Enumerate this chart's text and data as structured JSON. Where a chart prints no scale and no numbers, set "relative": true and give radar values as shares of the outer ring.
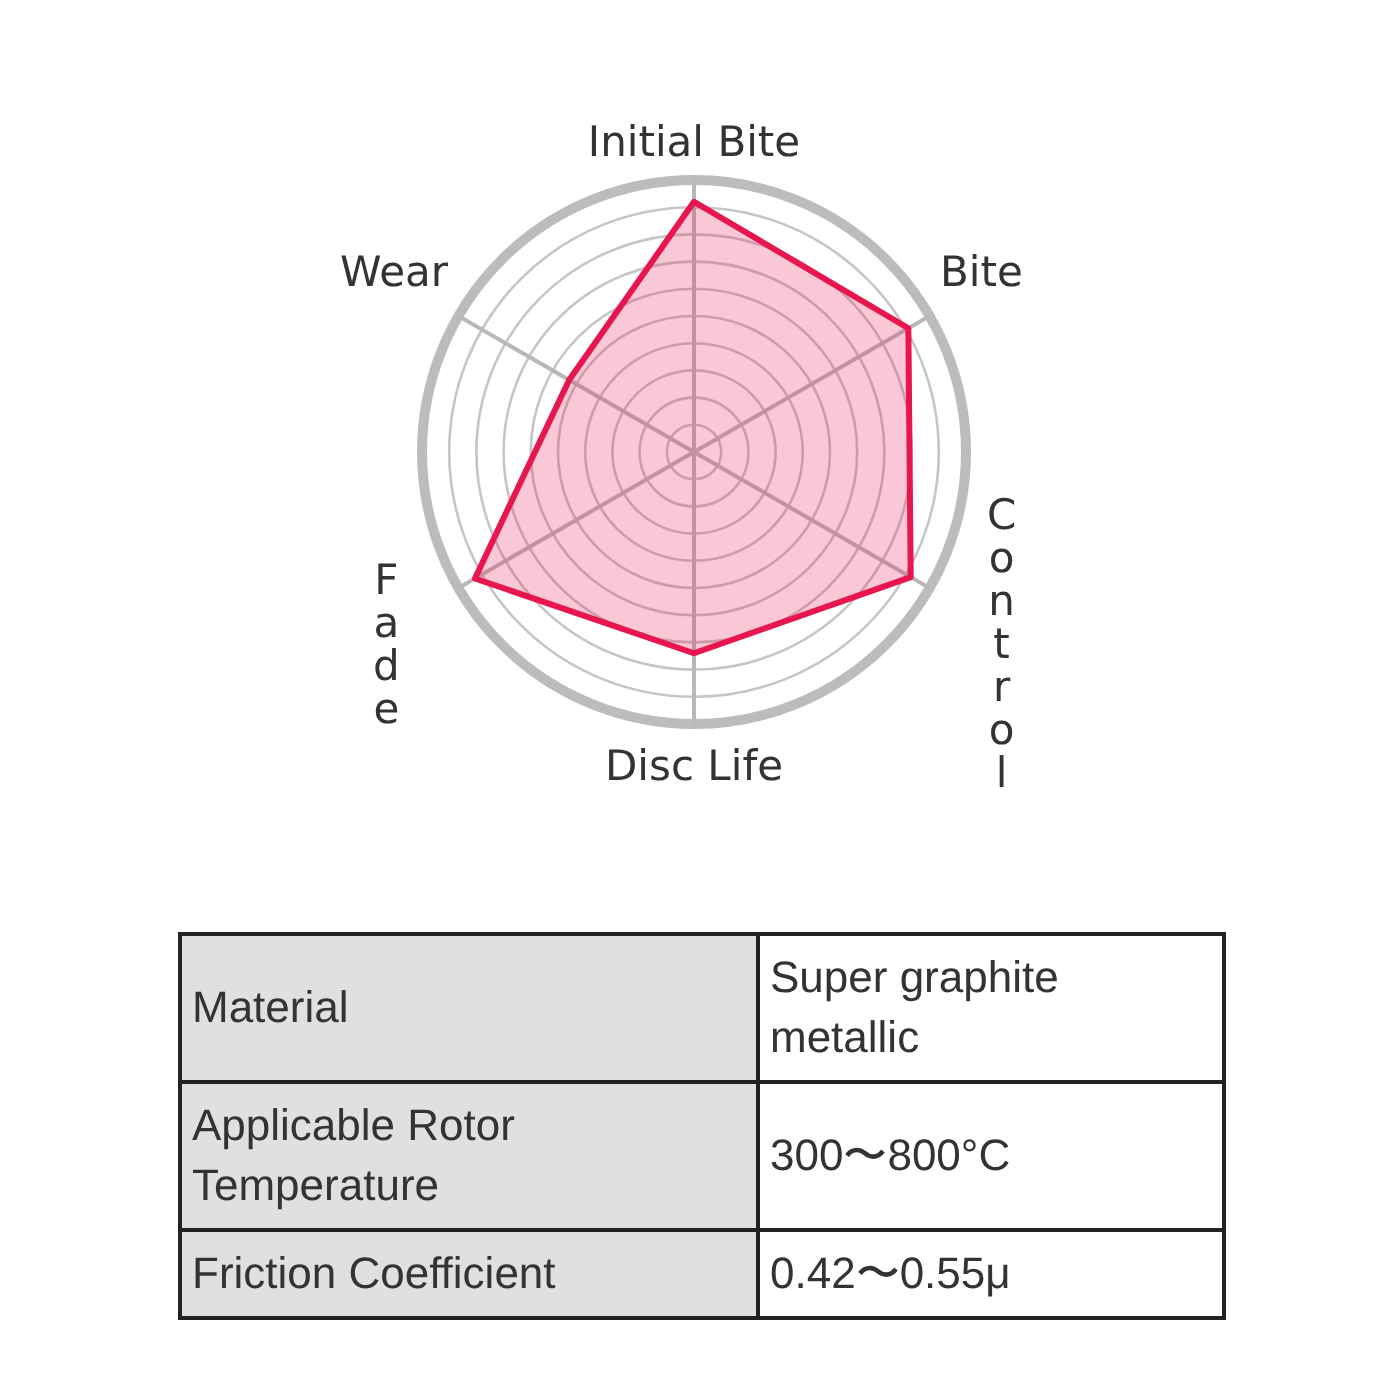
{
  "chart_data": [
    {
      "type": "radar",
      "categories": [
        "Initial Bite",
        "Bite",
        "Control",
        "Disc Life",
        "Fade",
        "Wear"
      ],
      "relative": true,
      "grid": true,
      "series": [
        {
          "color": "#e8164f",
          "values": [
            0.92,
            0.91,
            0.92,
            0.74,
            0.93,
            0.53
          ]
        }
      ]
    },
    {
      "type": "other",
      "annotations": [
        "Material",
        "Super graphite metallic",
        "Applicable Rotor Temperature",
        "300〜800°C",
        "Friction Coefficient",
        "0.42〜0.55μ"
      ]
    }
  ]
}
